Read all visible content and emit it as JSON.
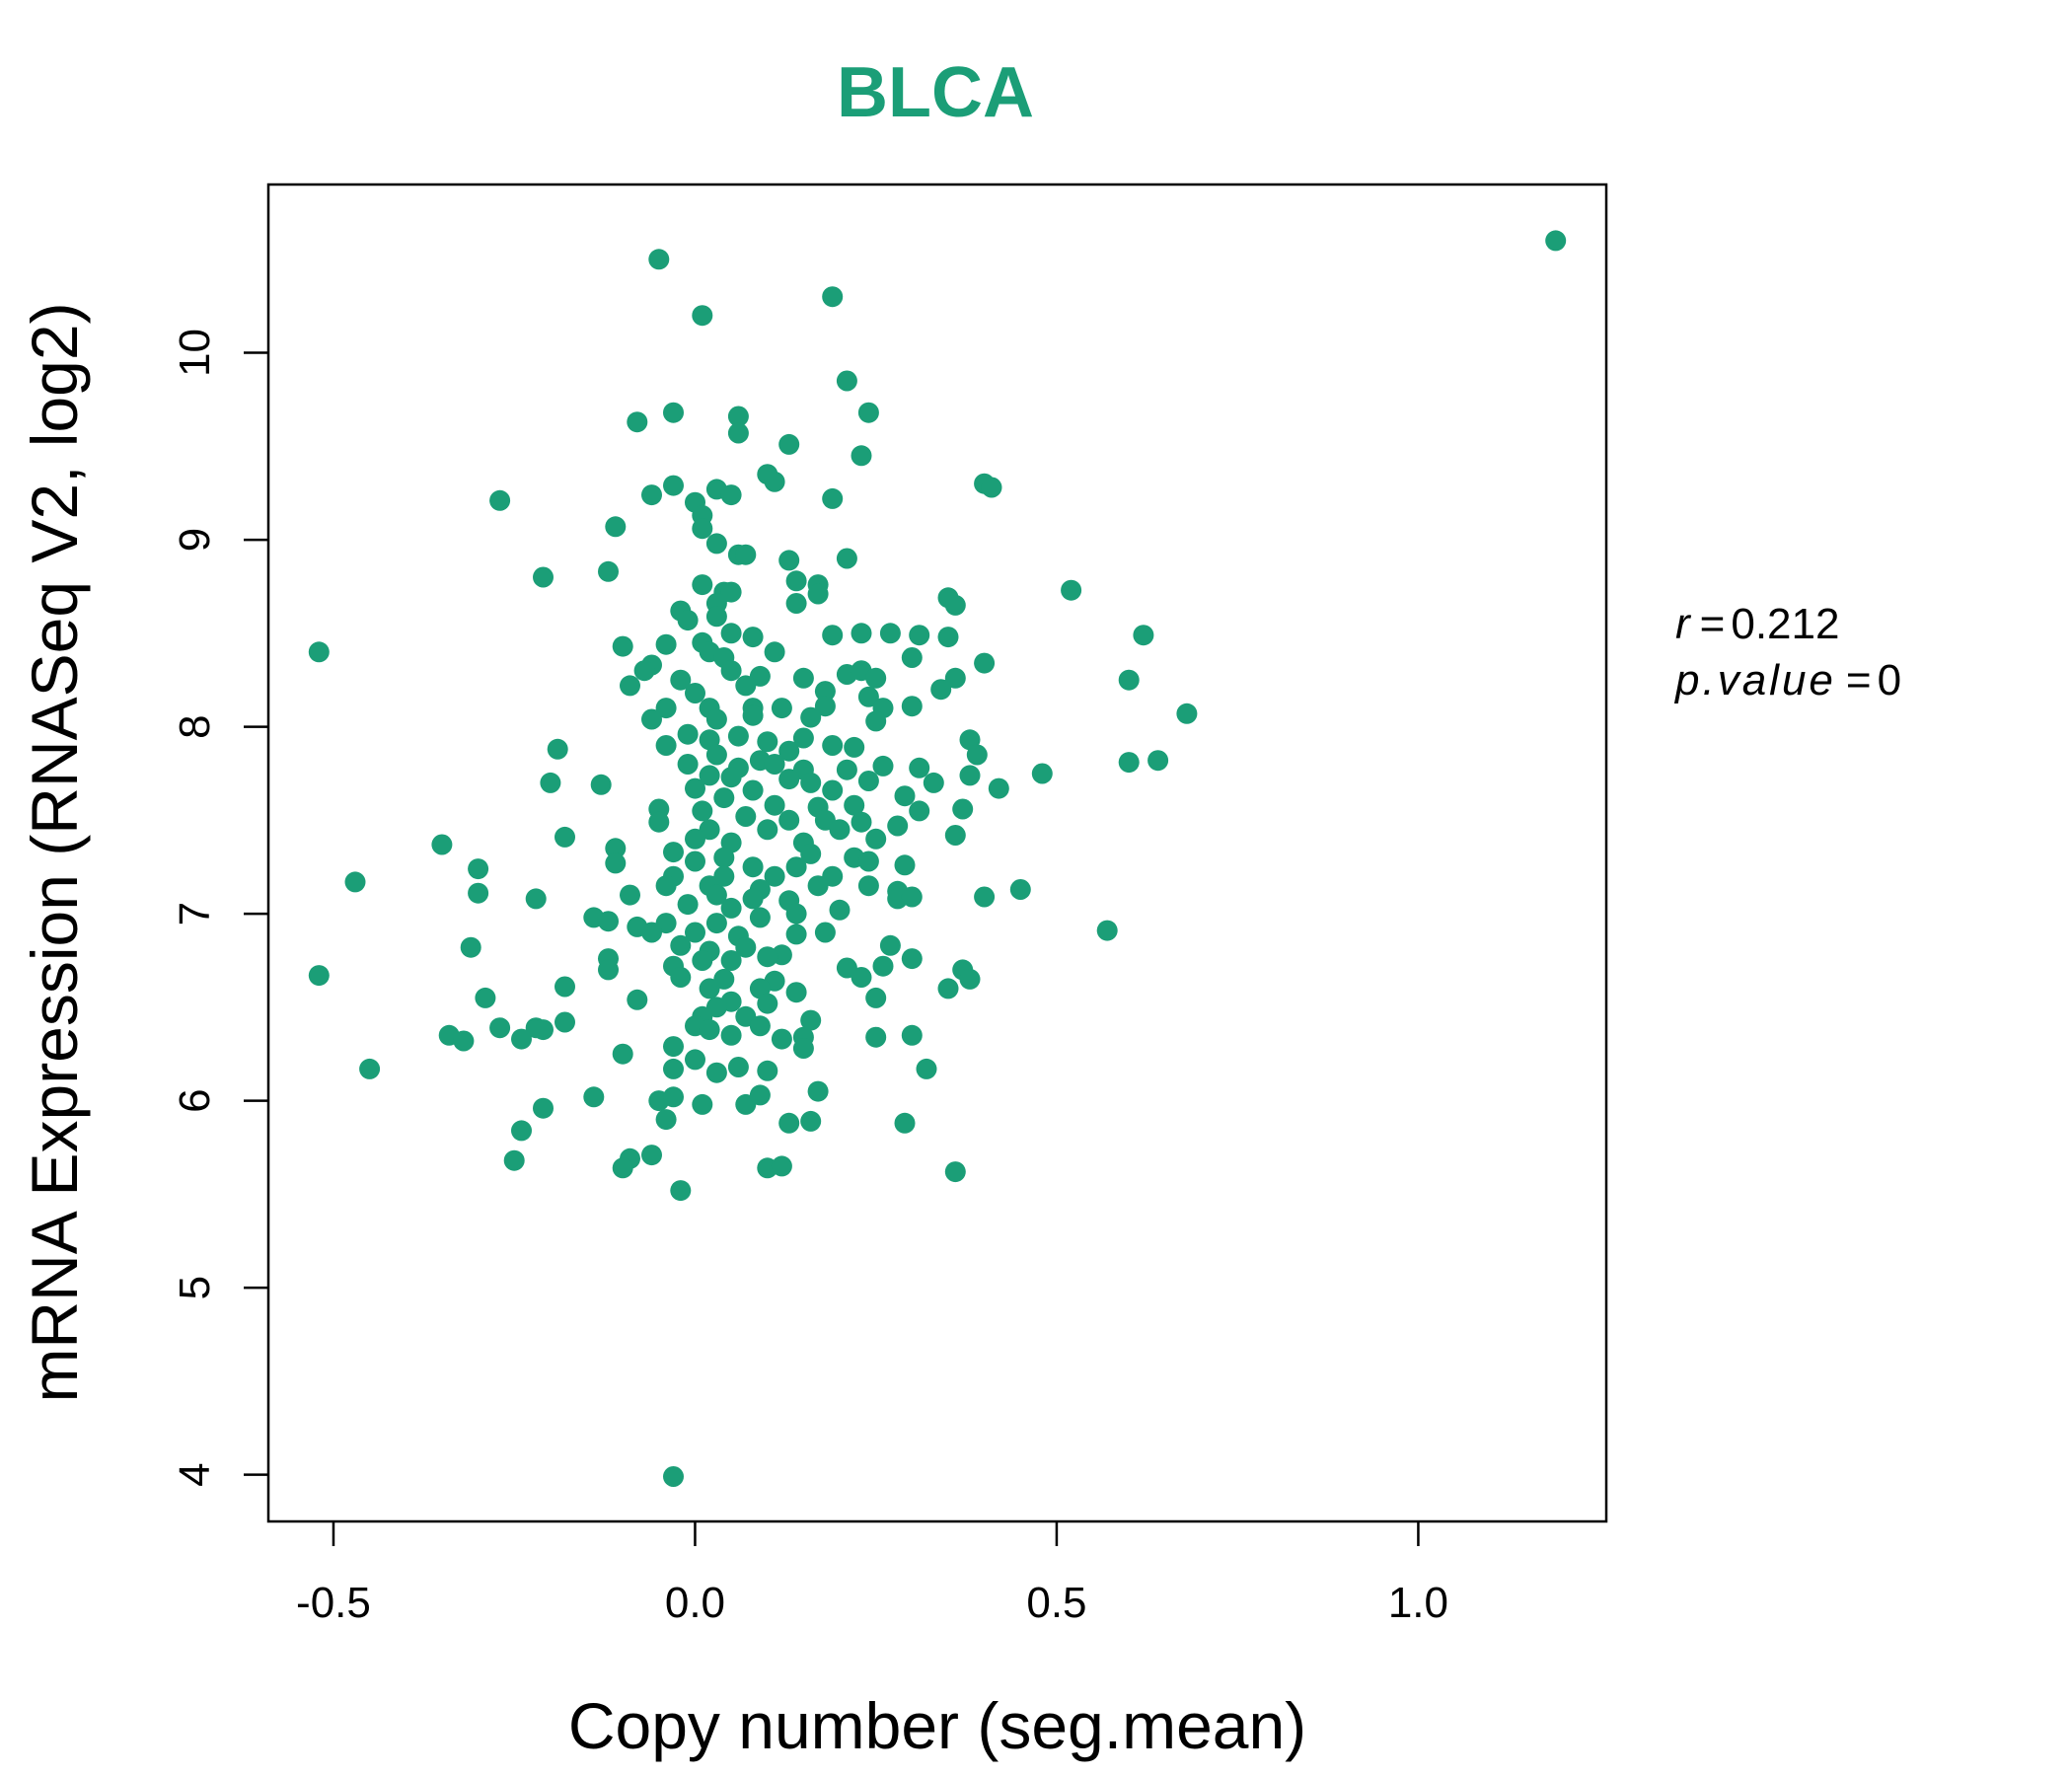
{
  "chart_data": {
    "type": "scatter",
    "title": "BLCA",
    "xlabel": "Copy number (seg.mean)",
    "ylabel": "mRNA Expression (RNASeq V2, log2)",
    "xlim": [
      -0.59,
      1.26
    ],
    "ylim": [
      3.75,
      10.9
    ],
    "x_ticks": [
      -0.5,
      0.0,
      0.5,
      1.0
    ],
    "x_tick_labels": [
      "-0.5",
      "0.0",
      "0.5",
      "1.0"
    ],
    "y_ticks": [
      4,
      5,
      6,
      7,
      8,
      9,
      10
    ],
    "y_tick_labels": [
      "4",
      "5",
      "6",
      "7",
      "8",
      "9",
      "10"
    ],
    "point_color": "#1b9e77",
    "title_color": "#1b9e77",
    "grid": false,
    "stats": {
      "r_label": "r",
      "r_value": "0.212",
      "p_label": "p.value",
      "p_value": "0"
    },
    "points": [
      [
        1.19,
        10.6
      ],
      [
        -0.05,
        10.5
      ],
      [
        0.01,
        10.2
      ],
      [
        0.19,
        10.3
      ],
      [
        0.21,
        9.85
      ],
      [
        0.24,
        9.68
      ],
      [
        -0.03,
        9.68
      ],
      [
        -0.08,
        9.63
      ],
      [
        0.06,
        9.66
      ],
      [
        0.06,
        9.57
      ],
      [
        0.13,
        9.51
      ],
      [
        0.23,
        9.45
      ],
      [
        0.1,
        9.35
      ],
      [
        0.11,
        9.31
      ],
      [
        0.4,
        9.3
      ],
      [
        0.41,
        9.28
      ],
      [
        -0.03,
        9.29
      ],
      [
        -0.06,
        9.24
      ],
      [
        0.19,
        9.22
      ],
      [
        -0.27,
        9.21
      ],
      [
        0.0,
        9.2
      ],
      [
        0.03,
        9.27
      ],
      [
        0.05,
        9.24
      ],
      [
        0.01,
        9.13
      ],
      [
        0.01,
        9.06
      ],
      [
        -0.11,
        9.07
      ],
      [
        0.03,
        8.98
      ],
      [
        0.06,
        8.92
      ],
      [
        0.07,
        8.92
      ],
      [
        0.13,
        8.89
      ],
      [
        0.21,
        8.9
      ],
      [
        -0.12,
        8.83
      ],
      [
        -0.21,
        8.8
      ],
      [
        0.01,
        8.76
      ],
      [
        0.14,
        8.78
      ],
      [
        0.17,
        8.76
      ],
      [
        0.52,
        8.73
      ],
      [
        0.04,
        8.72
      ],
      [
        0.05,
        8.72
      ],
      [
        0.17,
        8.71
      ],
      [
        0.35,
        8.69
      ],
      [
        0.36,
        8.65
      ],
      [
        0.14,
        8.66
      ],
      [
        0.03,
        8.66
      ],
      [
        -0.02,
        8.62
      ],
      [
        -0.01,
        8.57
      ],
      [
        0.03,
        8.59
      ],
      [
        0.05,
        8.5
      ],
      [
        0.08,
        8.48
      ],
      [
        0.19,
        8.49
      ],
      [
        0.23,
        8.5
      ],
      [
        0.27,
        8.5
      ],
      [
        0.31,
        8.49
      ],
      [
        0.35,
        8.48
      ],
      [
        0.62,
        8.49
      ],
      [
        -0.52,
        8.4
      ],
      [
        -0.1,
        8.43
      ],
      [
        -0.04,
        8.44
      ],
      [
        0.01,
        8.45
      ],
      [
        0.02,
        8.4
      ],
      [
        0.11,
        8.4
      ],
      [
        0.3,
        8.37
      ],
      [
        -0.06,
        8.33
      ],
      [
        0.04,
        8.37
      ],
      [
        0.4,
        8.34
      ],
      [
        -0.07,
        8.3
      ],
      [
        0.05,
        8.3
      ],
      [
        0.09,
        8.27
      ],
      [
        0.15,
        8.26
      ],
      [
        0.21,
        8.28
      ],
      [
        0.23,
        8.3
      ],
      [
        0.25,
        8.26
      ],
      [
        0.36,
        8.26
      ],
      [
        0.6,
        8.25
      ],
      [
        -0.09,
        8.22
      ],
      [
        -0.02,
        8.25
      ],
      [
        0.0,
        8.18
      ],
      [
        0.07,
        8.22
      ],
      [
        0.18,
        8.19
      ],
      [
        0.24,
        8.16
      ],
      [
        0.34,
        8.2
      ],
      [
        -0.04,
        8.1
      ],
      [
        0.02,
        8.1
      ],
      [
        0.08,
        8.1
      ],
      [
        0.12,
        8.1
      ],
      [
        0.18,
        8.11
      ],
      [
        0.26,
        8.1
      ],
      [
        0.3,
        8.11
      ],
      [
        0.68,
        8.07
      ],
      [
        -0.06,
        8.04
      ],
      [
        0.03,
        8.04
      ],
      [
        0.08,
        8.06
      ],
      [
        0.16,
        8.05
      ],
      [
        0.25,
        8.03
      ],
      [
        -0.04,
        7.9
      ],
      [
        -0.01,
        7.96
      ],
      [
        0.02,
        7.93
      ],
      [
        0.06,
        7.95
      ],
      [
        0.1,
        7.92
      ],
      [
        0.15,
        7.94
      ],
      [
        0.19,
        7.9
      ],
      [
        0.38,
        7.93
      ],
      [
        -0.19,
        7.88
      ],
      [
        0.03,
        7.85
      ],
      [
        0.09,
        7.82
      ],
      [
        0.13,
        7.87
      ],
      [
        0.22,
        7.89
      ],
      [
        0.39,
        7.85
      ],
      [
        0.6,
        7.81
      ],
      [
        0.64,
        7.82
      ],
      [
        -0.01,
        7.8
      ],
      [
        0.06,
        7.78
      ],
      [
        0.11,
        7.8
      ],
      [
        0.15,
        7.77
      ],
      [
        0.21,
        7.77
      ],
      [
        0.26,
        7.79
      ],
      [
        0.31,
        7.78
      ],
      [
        0.38,
        7.74
      ],
      [
        0.48,
        7.75
      ],
      [
        0.02,
        7.74
      ],
      [
        0.05,
        7.73
      ],
      [
        0.13,
        7.72
      ],
      [
        0.16,
        7.7
      ],
      [
        0.24,
        7.71
      ],
      [
        0.33,
        7.7
      ],
      [
        -0.2,
        7.7
      ],
      [
        -0.13,
        7.69
      ],
      [
        0.0,
        7.67
      ],
      [
        0.08,
        7.66
      ],
      [
        0.19,
        7.66
      ],
      [
        0.29,
        7.63
      ],
      [
        0.42,
        7.67
      ],
      [
        0.04,
        7.62
      ],
      [
        0.11,
        7.58
      ],
      [
        0.17,
        7.57
      ],
      [
        0.22,
        7.58
      ],
      [
        0.31,
        7.55
      ],
      [
        0.37,
        7.56
      ],
      [
        -0.05,
        7.56
      ],
      [
        0.01,
        7.55
      ],
      [
        0.07,
        7.52
      ],
      [
        0.13,
        7.5
      ],
      [
        0.18,
        7.5
      ],
      [
        0.23,
        7.49
      ],
      [
        0.28,
        7.47
      ],
      [
        -0.05,
        7.49
      ],
      [
        0.02,
        7.45
      ],
      [
        0.1,
        7.45
      ],
      [
        0.2,
        7.45
      ],
      [
        0.25,
        7.4
      ],
      [
        0.36,
        7.42
      ],
      [
        -0.18,
        7.41
      ],
      [
        0.0,
        7.4
      ],
      [
        0.05,
        7.38
      ],
      [
        0.15,
        7.38
      ],
      [
        -0.35,
        7.37
      ],
      [
        -0.11,
        7.35
      ],
      [
        -0.03,
        7.33
      ],
      [
        0.04,
        7.3
      ],
      [
        0.16,
        7.32
      ],
      [
        0.22,
        7.3
      ],
      [
        0.24,
        7.28
      ],
      [
        -0.11,
        7.27
      ],
      [
        0.0,
        7.28
      ],
      [
        0.08,
        7.25
      ],
      [
        0.14,
        7.25
      ],
      [
        0.29,
        7.26
      ],
      [
        -0.3,
        7.24
      ],
      [
        -0.03,
        7.2
      ],
      [
        0.04,
        7.2
      ],
      [
        0.11,
        7.2
      ],
      [
        0.19,
        7.2
      ],
      [
        -0.47,
        7.17
      ],
      [
        -0.04,
        7.15
      ],
      [
        0.02,
        7.15
      ],
      [
        0.09,
        7.13
      ],
      [
        0.17,
        7.15
      ],
      [
        0.24,
        7.15
      ],
      [
        0.28,
        7.12
      ],
      [
        0.45,
        7.13
      ],
      [
        -0.3,
        7.11
      ],
      [
        -0.09,
        7.1
      ],
      [
        0.03,
        7.1
      ],
      [
        0.08,
        7.08
      ],
      [
        0.13,
        7.07
      ],
      [
        0.28,
        7.08
      ],
      [
        0.3,
        7.09
      ],
      [
        0.4,
        7.09
      ],
      [
        -0.22,
        7.08
      ],
      [
        -0.01,
        7.05
      ],
      [
        0.05,
        7.03
      ],
      [
        0.14,
        7.0
      ],
      [
        0.2,
        7.02
      ],
      [
        -0.14,
        6.98
      ],
      [
        -0.12,
        6.96
      ],
      [
        -0.04,
        6.95
      ],
      [
        0.03,
        6.95
      ],
      [
        0.09,
        6.98
      ],
      [
        0.57,
        6.91
      ],
      [
        -0.06,
        6.9
      ],
      [
        0.0,
        6.9
      ],
      [
        0.06,
        6.88
      ],
      [
        0.14,
        6.89
      ],
      [
        0.18,
        6.9
      ],
      [
        -0.08,
        6.93
      ],
      [
        -0.31,
        6.82
      ],
      [
        -0.02,
        6.83
      ],
      [
        0.02,
        6.8
      ],
      [
        0.07,
        6.82
      ],
      [
        0.12,
        6.78
      ],
      [
        0.27,
        6.83
      ],
      [
        -0.12,
        6.76
      ],
      [
        0.01,
        6.75
      ],
      [
        0.05,
        6.75
      ],
      [
        0.1,
        6.77
      ],
      [
        0.3,
        6.76
      ],
      [
        -0.12,
        6.7
      ],
      [
        -0.03,
        6.72
      ],
      [
        0.21,
        6.71
      ],
      [
        0.26,
        6.72
      ],
      [
        0.37,
        6.7
      ],
      [
        -0.52,
        6.67
      ],
      [
        -0.02,
        6.66
      ],
      [
        0.04,
        6.65
      ],
      [
        0.11,
        6.64
      ],
      [
        0.23,
        6.66
      ],
      [
        0.38,
        6.65
      ],
      [
        -0.18,
        6.61
      ],
      [
        0.02,
        6.6
      ],
      [
        0.09,
        6.6
      ],
      [
        0.14,
        6.58
      ],
      [
        0.35,
        6.6
      ],
      [
        -0.29,
        6.55
      ],
      [
        -0.08,
        6.54
      ],
      [
        0.05,
        6.53
      ],
      [
        0.1,
        6.52
      ],
      [
        0.25,
        6.55
      ],
      [
        0.01,
        6.45
      ],
      [
        0.03,
        6.5
      ],
      [
        0.07,
        6.45
      ],
      [
        0.16,
        6.43
      ],
      [
        -0.27,
        6.39
      ],
      [
        -0.22,
        6.39
      ],
      [
        -0.18,
        6.42
      ],
      [
        0.0,
        6.4
      ],
      [
        0.05,
        6.35
      ],
      [
        0.09,
        6.4
      ],
      [
        -0.34,
        6.35
      ],
      [
        -0.32,
        6.32
      ],
      [
        -0.24,
        6.33
      ],
      [
        -0.21,
        6.38
      ],
      [
        0.02,
        6.38
      ],
      [
        0.12,
        6.33
      ],
      [
        0.15,
        6.34
      ],
      [
        0.25,
        6.34
      ],
      [
        0.3,
        6.35
      ],
      [
        -0.03,
        6.29
      ],
      [
        0.0,
        6.22
      ],
      [
        0.15,
        6.28
      ],
      [
        -0.1,
        6.25
      ],
      [
        -0.45,
        6.17
      ],
      [
        -0.03,
        6.17
      ],
      [
        0.03,
        6.15
      ],
      [
        0.06,
        6.18
      ],
      [
        0.1,
        6.16
      ],
      [
        0.32,
        6.17
      ],
      [
        -0.14,
        6.02
      ],
      [
        -0.05,
        6.0
      ],
      [
        -0.03,
        6.02
      ],
      [
        0.01,
        5.98
      ],
      [
        0.07,
        5.98
      ],
      [
        0.09,
        6.03
      ],
      [
        0.17,
        6.05
      ],
      [
        -0.21,
        5.96
      ],
      [
        -0.04,
        5.9
      ],
      [
        0.13,
        5.88
      ],
      [
        0.16,
        5.89
      ],
      [
        0.29,
        5.88
      ],
      [
        -0.24,
        5.84
      ],
      [
        -0.06,
        5.71
      ],
      [
        -0.09,
        5.69
      ],
      [
        -0.1,
        5.64
      ],
      [
        -0.25,
        5.68
      ],
      [
        0.1,
        5.64
      ],
      [
        0.12,
        5.65
      ],
      [
        0.36,
        5.62
      ],
      [
        -0.02,
        5.52
      ],
      [
        -0.03,
        3.99
      ]
    ]
  }
}
